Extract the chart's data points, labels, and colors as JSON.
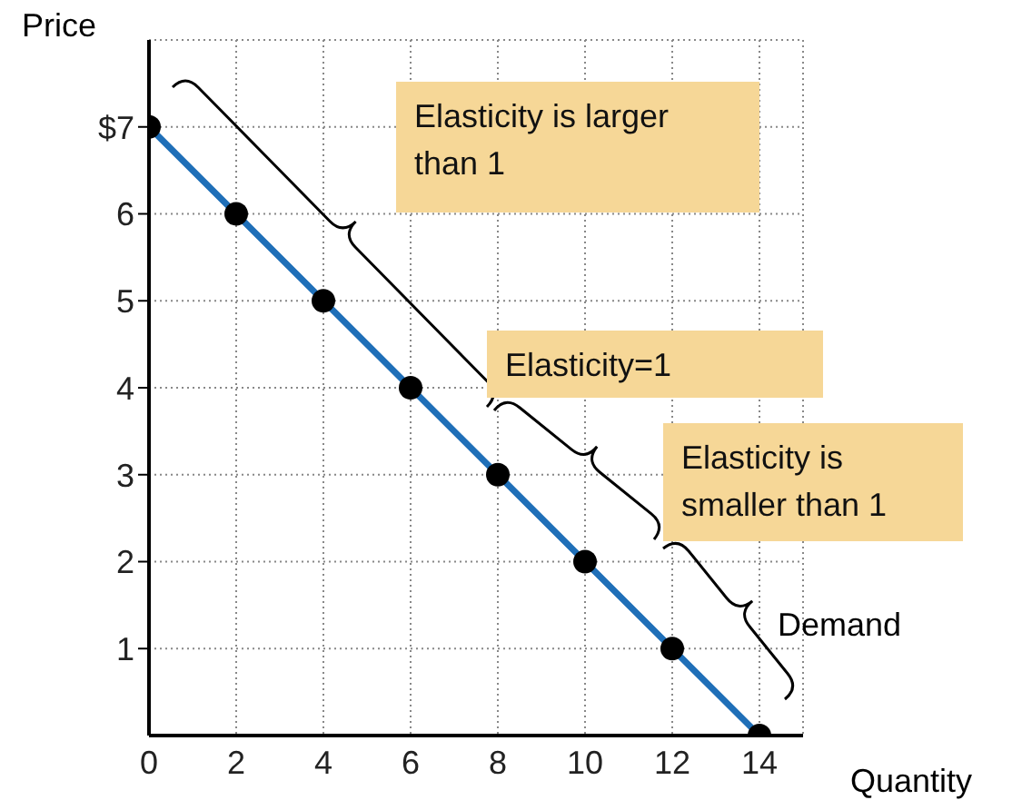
{
  "chart_data": {
    "type": "line",
    "xlabel": "Quantity",
    "ylabel": "Price",
    "x": [
      0,
      2,
      4,
      6,
      8,
      10,
      12,
      14
    ],
    "series": [
      {
        "name": "Demand",
        "color": "#1f6fb8",
        "values": [
          7,
          6,
          5,
          4,
          3,
          2,
          1,
          0
        ]
      }
    ],
    "xlim": [
      0,
      15
    ],
    "ylim": [
      0,
      8
    ],
    "xticks": [
      0,
      2,
      4,
      6,
      8,
      10,
      12,
      14
    ],
    "yticks": [
      {
        "value": 7,
        "label": "$7"
      },
      6,
      5,
      4,
      3,
      2,
      1
    ],
    "grid": true,
    "marker": "circle",
    "legend": false,
    "annotations": [
      "Elasticity is larger than 1",
      "Elasticity=1",
      "Elasticity is smaller than 1"
    ]
  }
}
